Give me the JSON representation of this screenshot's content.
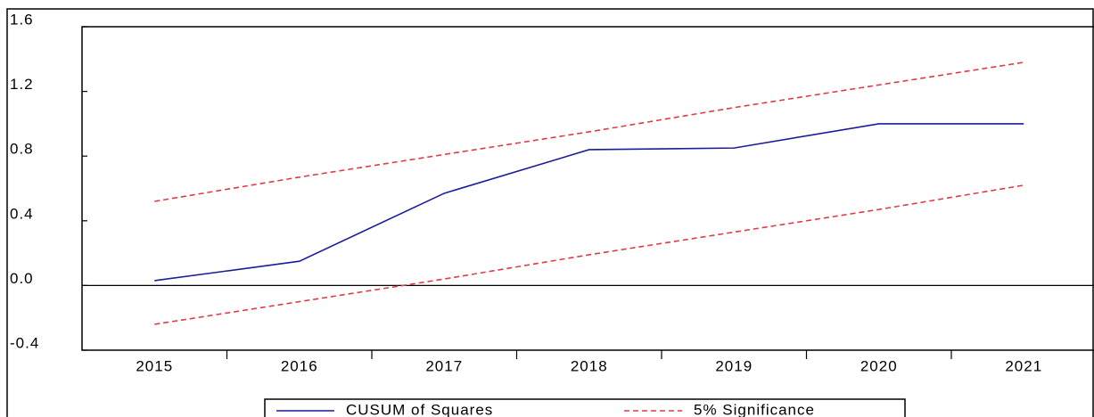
{
  "chart_data": {
    "type": "line",
    "categories": [
      "2015",
      "2016",
      "2017",
      "2018",
      "2019",
      "2020",
      "2021"
    ],
    "series": [
      {
        "name": "CUSUM of Squares",
        "color": "#1c1c9c",
        "values": [
          0.03,
          0.15,
          0.57,
          0.84,
          0.85,
          1.0,
          1.0
        ]
      },
      {
        "name": "5% Significance",
        "color": "#e23a46",
        "dashed": true,
        "values": [
          0.52,
          0.67,
          0.81,
          0.95,
          1.1,
          1.24,
          1.38
        ],
        "lower": [
          -0.24,
          -0.1,
          0.04,
          0.19,
          0.33,
          0.47,
          0.62
        ]
      }
    ],
    "ylim": [
      -0.4,
      1.6
    ],
    "yticks": [
      -0.4,
      {
        "value": 0,
        "label": "0.0"
      },
      0.4,
      0.8,
      1.2,
      1.6
    ],
    "zero_line": true,
    "legend": "bottom"
  }
}
